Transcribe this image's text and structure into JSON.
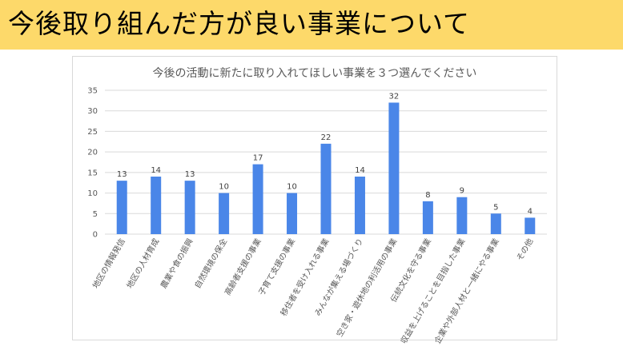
{
  "header": {
    "title": "今後取り組んだ方が良い事業について"
  },
  "colors": {
    "header_bg": "#fdd96a",
    "bar": "#4a86e8",
    "grid": "#d9d9d9"
  },
  "chart_data": {
    "type": "bar",
    "title": "今後の活動に新たに取り入れてほしい事業を３つ選んでください",
    "xlabel": "",
    "ylabel": "",
    "ylim": [
      0,
      35
    ],
    "yticks": [
      0,
      5,
      10,
      15,
      20,
      25,
      30,
      35
    ],
    "grid": true,
    "legend": "none",
    "categories": [
      "地区の情報発信",
      "地区の人材育成",
      "農業や食の振興",
      "自然環境の保全",
      "高齢者支援の事業",
      "子育て支援の事業",
      "移住者を受け入れる事業",
      "みんなが集える場づくり",
      "空き家・遊休地の利活用の事業",
      "伝統文化を守る事業",
      "収益を上げることを目指した事業",
      "企業や外部人材と一緒にやる事業",
      "その他"
    ],
    "values": [
      13,
      14,
      13,
      10,
      17,
      10,
      22,
      14,
      32,
      8,
      9,
      5,
      4
    ]
  }
}
